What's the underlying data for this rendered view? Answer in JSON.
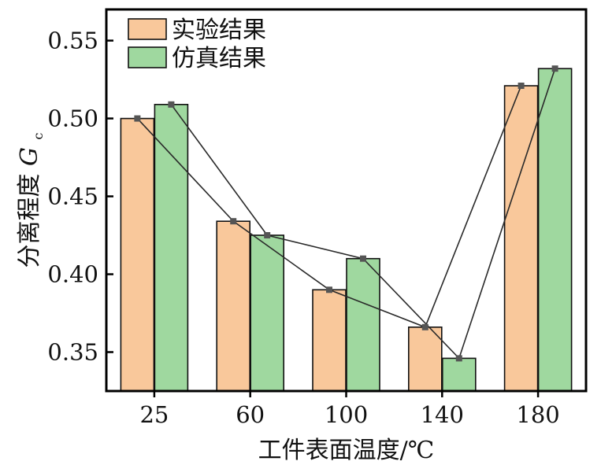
{
  "chart_data": {
    "type": "bar",
    "title": "",
    "xlabel": "工件表面温度/℃",
    "ylabel_main": "分离程度",
    "ylabel_symbol": "G",
    "ylabel_subscript": "c",
    "categories": [
      "25",
      "60",
      "100",
      "140",
      "180"
    ],
    "series": [
      {
        "name": "实验结果",
        "values": [
          0.5,
          0.434,
          0.39,
          0.366,
          0.521
        ],
        "color": "#f9c89b"
      },
      {
        "name": "仿真结果",
        "values": [
          0.509,
          0.425,
          0.41,
          0.346,
          0.532
        ],
        "color": "#9fd89f"
      }
    ],
    "line_color": "#2a2a2a",
    "marker_color": "#555555",
    "ylim": [
      0.325,
      0.57
    ],
    "yticks": [
      0.35,
      0.4,
      0.45,
      0.5,
      0.55
    ],
    "ytick_labels": [
      "0.35",
      "0.40",
      "0.45",
      "0.50",
      "0.55"
    ],
    "legend_position": "top-left",
    "grid": false
  }
}
